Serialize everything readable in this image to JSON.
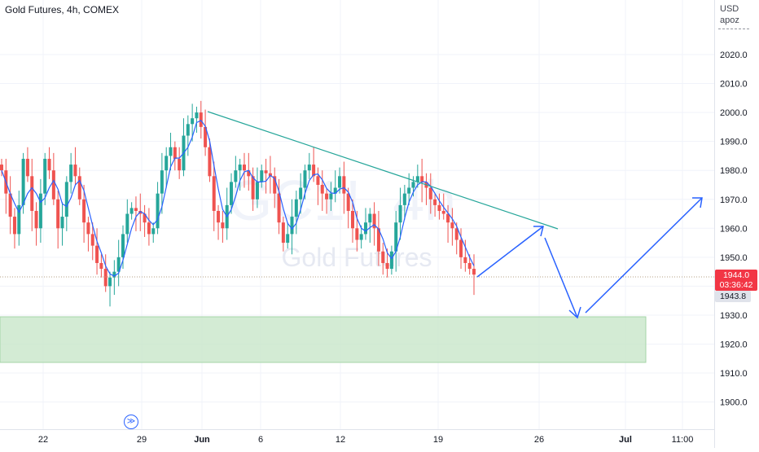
{
  "header": {
    "symbol_title": "Gold Futures, 4h, COMEX",
    "currency": "USD",
    "unit": "apoz"
  },
  "watermark": {
    "ticker": "GC1!, 4h",
    "name": "Gold Futures"
  },
  "price_scale": {
    "ticks": [
      "2020.0",
      "2010.0",
      "2000.0",
      "1990.0",
      "1980.0",
      "1970.0",
      "1960.0",
      "1950.0",
      "1940.0",
      "1930.0",
      "1920.0",
      "1910.0",
      "1900.0"
    ],
    "last_price": "1944.0",
    "countdown": "03:36:42",
    "secondary_price": "1943.8"
  },
  "time_scale": {
    "ticks": [
      "22",
      "29",
      "Jun",
      "6",
      "12",
      "19",
      "26",
      "Jul",
      "11:00"
    ]
  },
  "colors": {
    "up": "#26a69a",
    "down": "#ef5350",
    "ma_line": "#2962ff",
    "trend_line": "#26a69a",
    "arrow": "#2962ff",
    "zone_fill": "#c8e6c9",
    "price_tag": "#f23645"
  },
  "icons": {
    "replay": "replay-icon"
  },
  "chart_data": {
    "type": "candlestick",
    "title": "Gold Futures, 4h, COMEX",
    "symbol": "GC1!",
    "interval": "4h",
    "exchange": "COMEX",
    "ylabel": "USD apoz",
    "ylim": [
      1893,
      2037
    ],
    "grid": true,
    "last_price": 1944.0,
    "approx_price_path": [
      1980,
      1972,
      1964,
      1958,
      1968,
      1984,
      1978,
      1966,
      1960,
      1972,
      1984,
      1980,
      1970,
      1960,
      1964,
      1976,
      1982,
      1978,
      1970,
      1962,
      1958,
      1954,
      1948,
      1946,
      1940,
      1943,
      1945,
      1950,
      1958,
      1965,
      1967,
      1966,
      1965,
      1962,
      1958,
      1960,
      1972,
      1980,
      1985,
      1988,
      1984,
      1980,
      1992,
      1996,
      1998,
      2000,
      1995,
      1988,
      1978,
      1966,
      1962,
      1960,
      1968,
      1976,
      1980,
      1982,
      1980,
      1978,
      1970,
      1976,
      1980,
      1979,
      1978,
      1972,
      1962,
      1955,
      1958,
      1964,
      1970,
      1974,
      1980,
      1982,
      1978,
      1975,
      1972,
      1970,
      1972,
      1974,
      1978,
      1972,
      1966,
      1960,
      1956,
      1958,
      1962,
      1965,
      1960,
      1952,
      1948,
      1946,
      1952,
      1962,
      1968,
      1972,
      1974,
      1976,
      1978,
      1976,
      1974,
      1970,
      1968,
      1966,
      1965,
      1962,
      1960,
      1956,
      1950,
      1948,
      1946,
      1944
    ],
    "trend_line": {
      "from": [
        "Jun 1",
        2001
      ],
      "to": [
        "Jun 25",
        1960
      ]
    },
    "support_zone": [
      1914,
      1930
    ],
    "projection_path": [
      1944,
      1961,
      1929,
      1971
    ],
    "x_ticks": [
      "22",
      "29",
      "Jun",
      "6",
      "12",
      "19",
      "26",
      "Jul",
      "11:00"
    ]
  }
}
